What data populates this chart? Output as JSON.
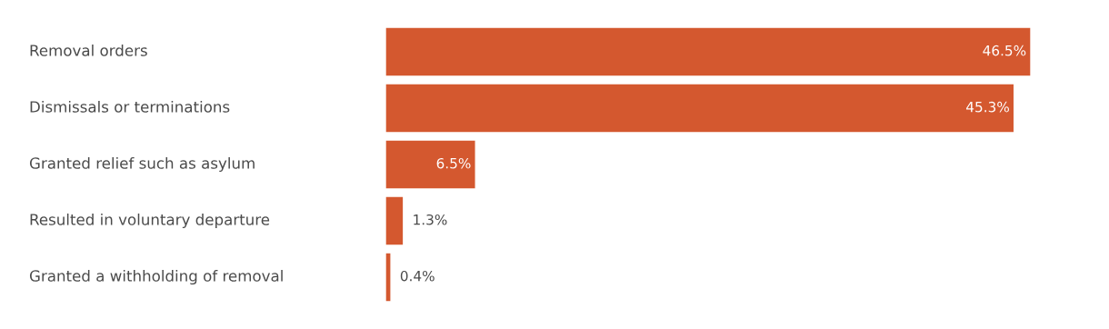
{
  "chart_data": {
    "type": "bar",
    "orientation": "horizontal",
    "categories": [
      "Removal orders",
      "Dismissals or terminations",
      "Granted relief such as asylum",
      "Resulted in voluntary departure",
      "Granted a withholding of removal"
    ],
    "values": [
      46.5,
      45.3,
      6.5,
      1.3,
      0.4
    ],
    "value_labels": [
      "46.5%",
      "45.3%",
      "6.5%",
      "1.3%",
      "0.4%"
    ],
    "color": "#d4582f"
  }
}
